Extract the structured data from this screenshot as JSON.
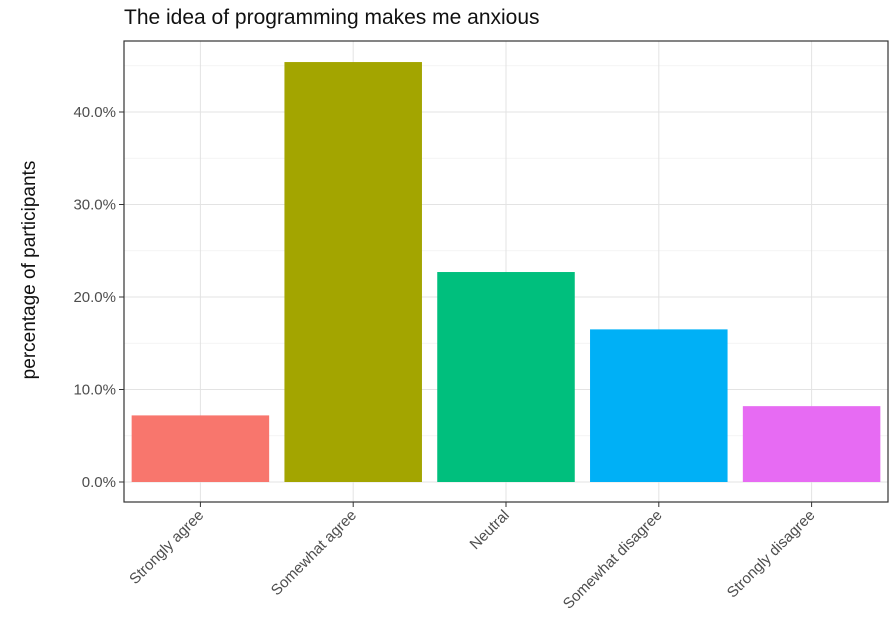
{
  "chart_data": {
    "type": "bar",
    "title": "The idea of programming makes me anxious",
    "xlabel": "",
    "ylabel": "percentage of participants",
    "categories": [
      "Strongly agree",
      "Somewhat agree",
      "Neutral",
      "Somewhat disagree",
      "Strongly disagree"
    ],
    "values": [
      7.2,
      45.4,
      22.7,
      16.5,
      8.2
    ],
    "colors": [
      "#F8766D",
      "#A3A500",
      "#00BF7D",
      "#00B0F6",
      "#E76BF3"
    ],
    "ylim": [
      0,
      47
    ],
    "yticks": [
      0,
      10,
      20,
      30,
      40
    ],
    "ytick_labels": [
      "0.0%",
      "10.0%",
      "20.0%",
      "30.0%",
      "40.0%"
    ],
    "grid": true,
    "legend": "none"
  }
}
